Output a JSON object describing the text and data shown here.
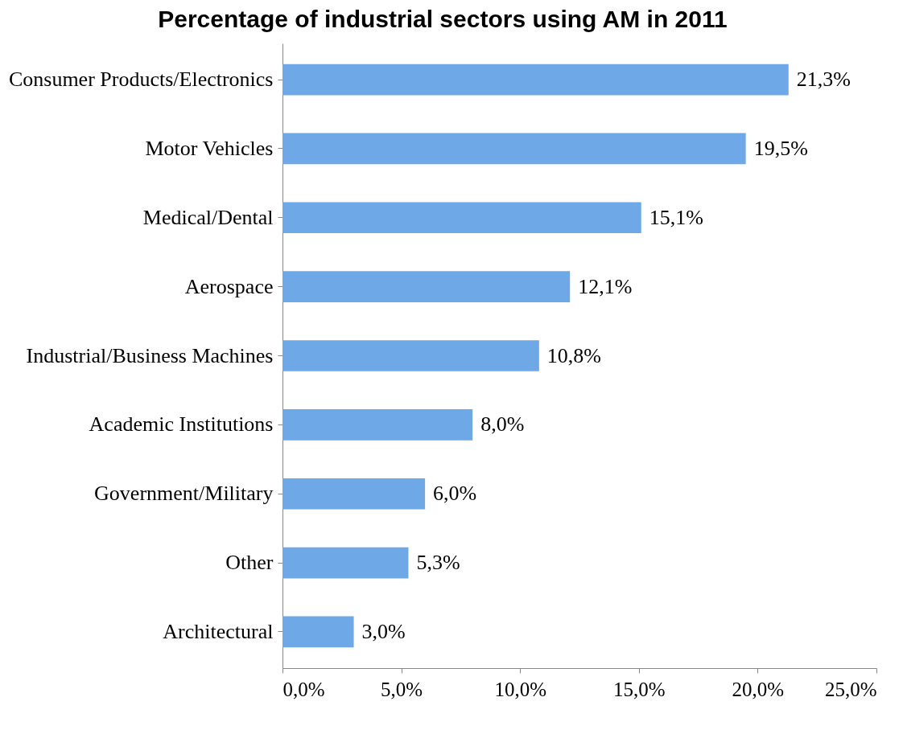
{
  "chart_data": {
    "type": "bar",
    "orientation": "horizontal",
    "title": "Percentage of industrial sectors using AM in 2011",
    "categories": [
      "Consumer Products/Electronics",
      "Motor Vehicles",
      "Medical/Dental",
      "Aerospace",
      "Industrial/Business Machines",
      "Academic Institutions",
      "Government/Military",
      "Other",
      "Architectural"
    ],
    "values": [
      21.3,
      19.5,
      15.1,
      12.1,
      10.8,
      8.0,
      6.0,
      5.3,
      3.0
    ],
    "value_labels": [
      "21,3%",
      "19,5%",
      "15,1%",
      "12,1%",
      "10,8%",
      "8,0%",
      "6,0%",
      "5,3%",
      "3,0%"
    ],
    "color": "#6fa8e6",
    "xlim": [
      0,
      25
    ],
    "xticks": [
      {
        "value": 0,
        "label": "0,0%"
      },
      {
        "value": 5,
        "label": "5,0%"
      },
      {
        "value": 10,
        "label": "10,0%"
      },
      {
        "value": 15,
        "label": "15,0%"
      },
      {
        "value": 20,
        "label": "20,0%"
      },
      {
        "value": 25,
        "label": "25,0%"
      }
    ],
    "grid": false
  }
}
